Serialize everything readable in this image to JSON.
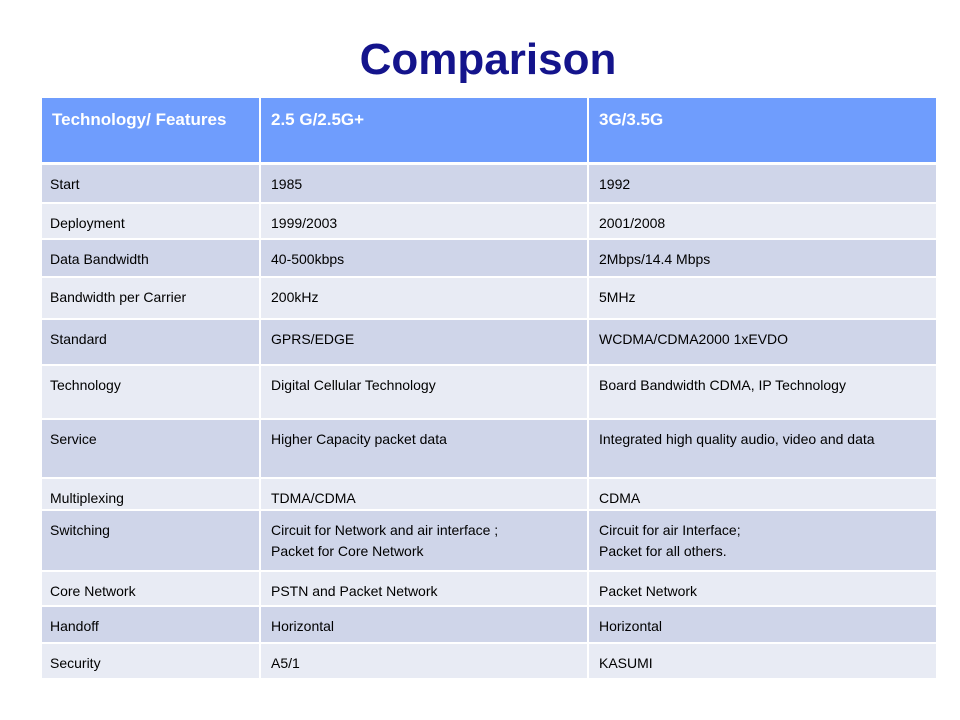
{
  "title": "Comparison",
  "table": {
    "headers": [
      "Technology/ Features",
      "2.5 G/2.5G+",
      "3G/3.5G"
    ],
    "rows": [
      [
        "Start",
        "1985",
        "1992"
      ],
      [
        "Deployment",
        "1999/2003",
        "2001/2008"
      ],
      [
        "Data Bandwidth",
        "40-500kbps",
        "2Mbps/14.4 Mbps"
      ],
      [
        "Bandwidth per Carrier",
        "200kHz",
        "5MHz"
      ],
      [
        "Standard",
        "GPRS/EDGE",
        "WCDMA/CDMA2000 1xEVDO"
      ],
      [
        "Technology",
        "Digital Cellular Technology",
        "Board Bandwidth CDMA, IP Technology"
      ],
      [
        "Service",
        "Higher Capacity packet data",
        "Integrated high quality audio, video and data"
      ],
      [
        "Multiplexing",
        " TDMA/CDMA",
        "CDMA"
      ],
      [
        "Switching",
        "Circuit for Network and air interface ;\nPacket for Core Network",
        "Circuit for air Interface;\nPacket for all others."
      ],
      [
        "Core Network",
        "PSTN and Packet Network",
        "Packet Network"
      ],
      [
        "Handoff",
        "Horizontal",
        "Horizontal"
      ],
      [
        "Security",
        "A5/1",
        "KASUMI"
      ]
    ]
  },
  "colors": {
    "title": "#14148c",
    "header_bg": "#6f9dfd",
    "row_odd": "#cfd5e9",
    "row_even": "#e8ebf4"
  }
}
